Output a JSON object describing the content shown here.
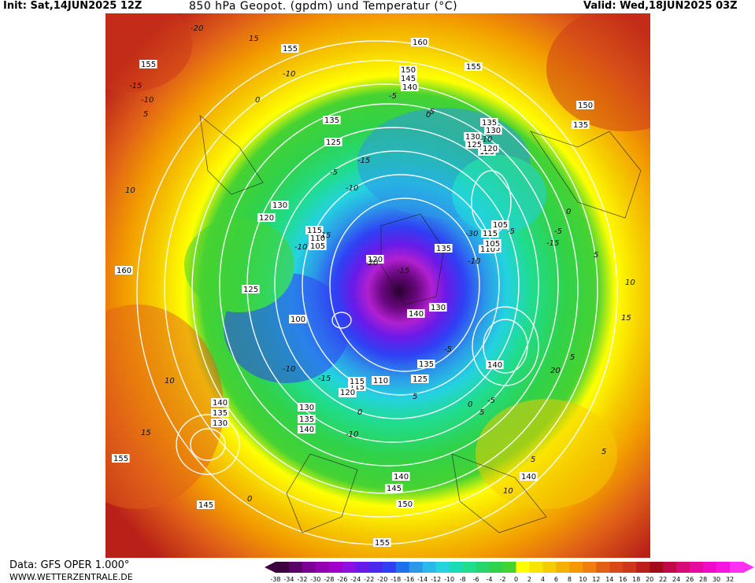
{
  "header": {
    "init": "Init: Sat,14JUN2025 12Z",
    "title": "850 hPa Geopot. (gpdm) und Temperatur (°C)",
    "valid": "Valid: Wed,18JUN2025 03Z"
  },
  "footer": {
    "data_source": "Data: GFS OPER 1.000°",
    "website": "WWW.WETTERZENTRALE.DE"
  },
  "legend": {
    "values": [
      "-38",
      "-34",
      "-32",
      "-30",
      "-28",
      "-26",
      "-24",
      "-22",
      "-20",
      "-18",
      "-16",
      "-14",
      "-12",
      "-10",
      "-8",
      "-6",
      "-4",
      "-2",
      "0",
      "2",
      "4",
      "6",
      "8",
      "10",
      "12",
      "14",
      "16",
      "18",
      "20",
      "22",
      "24",
      "26",
      "28",
      "30",
      "32"
    ],
    "colors": [
      "#3d003f",
      "#5a0068",
      "#7a0094",
      "#9200b0",
      "#a000c8",
      "#8c10e0",
      "#6a1ae8",
      "#4a28f0",
      "#2f40f4",
      "#2070ec",
      "#2c98e8",
      "#2cb8e8",
      "#24d2e0",
      "#18dcb8",
      "#20dc8c",
      "#26d66a",
      "#30d24a",
      "#46d232",
      "#ffff00",
      "#f8e400",
      "#f6cc00",
      "#f4b200",
      "#f29a00",
      "#ee7e10",
      "#e06018",
      "#d84818",
      "#cc3818",
      "#b82018",
      "#a00c18",
      "#c00a48",
      "#d80a78",
      "#e80aa0",
      "#f00ac8",
      "#f814e0",
      "#ff30f0"
    ]
  },
  "map": {
    "height_labels": [
      {
        "text": "155"
      },
      {
        "text": "160"
      },
      {
        "text": "155"
      },
      {
        "text": "150"
      },
      {
        "text": "145"
      },
      {
        "text": "140"
      },
      {
        "text": "150"
      },
      {
        "text": "155"
      },
      {
        "text": "135"
      },
      {
        "text": "125"
      },
      {
        "text": "130"
      },
      {
        "text": "120"
      },
      {
        "text": "115"
      },
      {
        "text": "110"
      },
      {
        "text": "105"
      },
      {
        "text": "160"
      },
      {
        "text": "125"
      },
      {
        "text": "100"
      },
      {
        "text": "120"
      },
      {
        "text": "135"
      },
      {
        "text": "140"
      },
      {
        "text": "130"
      },
      {
        "text": "135"
      },
      {
        "text": "140"
      },
      {
        "text": "135"
      },
      {
        "text": "125"
      },
      {
        "text": "130"
      },
      {
        "text": "135"
      },
      {
        "text": "130"
      },
      {
        "text": "125"
      },
      {
        "text": "120"
      },
      {
        "text": "115"
      },
      {
        "text": "105"
      },
      {
        "text": "100"
      },
      {
        "text": "110"
      },
      {
        "text": "105"
      },
      {
        "text": "110"
      },
      {
        "text": "115"
      },
      {
        "text": "120"
      },
      {
        "text": "125"
      },
      {
        "text": "115"
      },
      {
        "text": "120"
      },
      {
        "text": "130"
      },
      {
        "text": "135"
      },
      {
        "text": "140"
      },
      {
        "text": "130"
      },
      {
        "text": "135"
      },
      {
        "text": "140"
      },
      {
        "text": "155"
      },
      {
        "text": "145"
      },
      {
        "text": "140"
      },
      {
        "text": "145"
      },
      {
        "text": "150"
      },
      {
        "text": "155"
      },
      {
        "text": "140"
      }
    ],
    "temp_labels": [
      {
        "text": "-20"
      },
      {
        "text": "15"
      },
      {
        "text": "-15"
      },
      {
        "text": "-10"
      },
      {
        "text": "-10"
      },
      {
        "text": "-5"
      },
      {
        "text": "0"
      },
      {
        "text": "5"
      },
      {
        "text": "-5"
      },
      {
        "text": "0"
      },
      {
        "text": "-10"
      },
      {
        "text": "10"
      },
      {
        "text": "-15"
      },
      {
        "text": "-10"
      },
      {
        "text": "-5"
      },
      {
        "text": "-10"
      },
      {
        "text": "-15"
      },
      {
        "text": "-30"
      },
      {
        "text": "-20"
      },
      {
        "text": "-15"
      },
      {
        "text": "-10"
      },
      {
        "text": "-5"
      },
      {
        "text": "0"
      },
      {
        "text": "5"
      },
      {
        "text": "10"
      },
      {
        "text": "15"
      },
      {
        "text": "20"
      },
      {
        "text": "-5"
      },
      {
        "text": "-10"
      },
      {
        "text": "5"
      },
      {
        "text": "0"
      },
      {
        "text": "-5"
      },
      {
        "text": "-10"
      },
      {
        "text": "-15"
      },
      {
        "text": "0"
      },
      {
        "text": "5"
      },
      {
        "text": "15"
      },
      {
        "text": "10"
      },
      {
        "text": "5"
      },
      {
        "text": "0"
      },
      {
        "text": "-5"
      },
      {
        "text": "-15"
      },
      {
        "text": "5"
      },
      {
        "text": "10"
      },
      {
        "text": "5"
      }
    ]
  }
}
